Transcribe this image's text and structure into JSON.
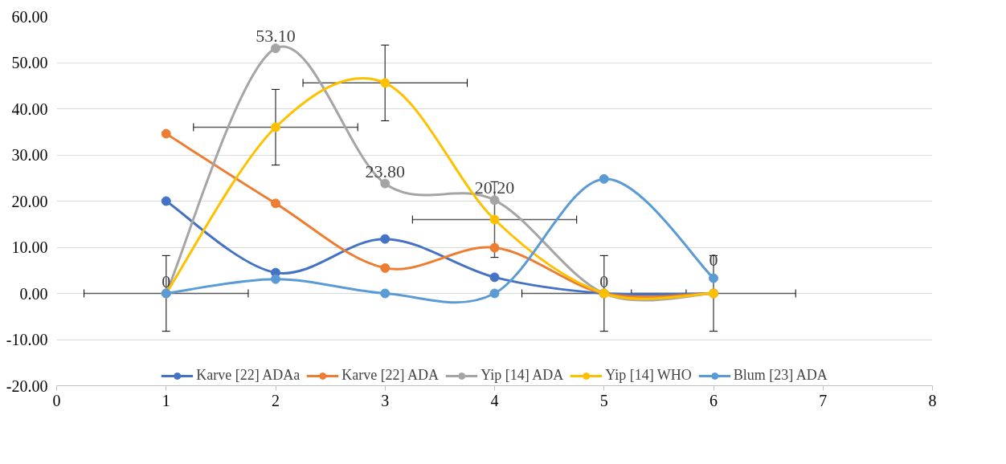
{
  "chart_data": {
    "type": "line",
    "x": [
      1,
      2,
      3,
      4,
      5,
      6
    ],
    "series": [
      {
        "name": "Karve [22] ADAa",
        "color": "#4472c4",
        "values": [
          20.0,
          4.5,
          11.8,
          3.5,
          0,
          0
        ]
      },
      {
        "name": "Karve [22] ADA",
        "color": "#ed7d31",
        "values": [
          34.6,
          19.5,
          5.5,
          9.9,
          0,
          0
        ]
      },
      {
        "name": "Yip [14] ADA",
        "color": "#a5a5a5",
        "values": [
          0,
          53.1,
          23.8,
          20.2,
          0,
          0
        ],
        "value_labels": [
          "0",
          "53.10",
          "23.80",
          "20.20",
          "0",
          "0"
        ]
      },
      {
        "name": "Yip [14] WHO",
        "color": "#ffc000",
        "values": [
          0,
          36.0,
          45.6,
          16.0,
          0,
          0
        ],
        "errors": [
          8.2,
          8.2,
          8.2,
          8.2,
          8.2,
          8.2
        ],
        "xerrors": [
          0.75,
          0.75,
          0.75,
          0.75,
          0.75,
          0.75
        ]
      },
      {
        "name": "Blum [23] ADA",
        "color": "#5b9bd5",
        "values": [
          0,
          3.1,
          0,
          0,
          24.8,
          3.3
        ]
      }
    ],
    "xlim": [
      0,
      8
    ],
    "xticks": [
      0,
      1,
      2,
      3,
      4,
      5,
      6,
      7,
      8
    ],
    "ylim": [
      -20,
      60
    ],
    "yticks": [
      {
        "value": -20,
        "label": "-20.00"
      },
      {
        "value": -10,
        "label": "-10.00"
      },
      {
        "value": 0,
        "label": "0.00"
      },
      {
        "value": 10,
        "label": "10.00"
      },
      {
        "value": 20,
        "label": "20.00"
      },
      {
        "value": 30,
        "label": "30.00"
      },
      {
        "value": 40,
        "label": "40.00"
      },
      {
        "value": 50,
        "label": "50.00"
      },
      {
        "value": 60,
        "label": "60.00"
      }
    ],
    "grid": "y",
    "legend": "bottom",
    "marker": "circle",
    "line_style": "solid"
  }
}
